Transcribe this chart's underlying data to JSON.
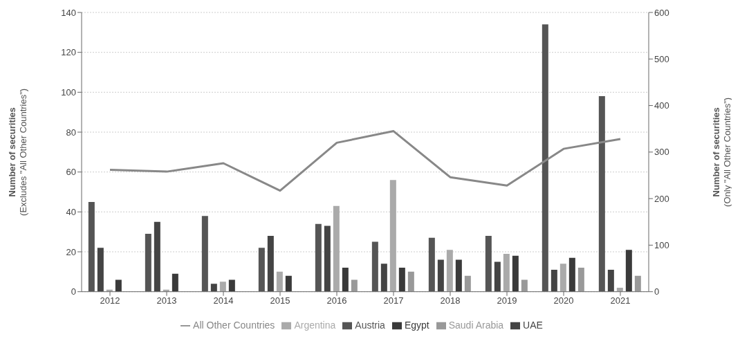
{
  "chart_data": {
    "type": "bar",
    "categories": [
      "2012",
      "2013",
      "2014",
      "2015",
      "2016",
      "2017",
      "2018",
      "2019",
      "2020",
      "2021"
    ],
    "series": [
      {
        "name": "Austria",
        "color": "#555555",
        "values": [
          45,
          29,
          38,
          22,
          34,
          25,
          27,
          28,
          134,
          98
        ]
      },
      {
        "name": "UAE",
        "color": "#444444",
        "values": [
          22,
          35,
          4,
          28,
          33,
          14,
          16,
          15,
          11,
          11
        ]
      },
      {
        "name": "Argentina",
        "color": "#aaaaaa",
        "values": [
          1,
          1,
          5,
          10,
          43,
          56,
          21,
          19,
          14,
          2
        ]
      },
      {
        "name": "Egypt",
        "color": "#3a3a3a",
        "values": [
          6,
          9,
          6,
          8,
          12,
          12,
          16,
          18,
          17,
          21
        ]
      },
      {
        "name": "Saudi Arabia",
        "color": "#999999",
        "values": [
          0,
          0,
          0,
          0,
          6,
          10,
          8,
          6,
          12,
          8
        ]
      },
      {
        "name": "All Other Countries",
        "type": "line",
        "axis": "y2",
        "color": "#888888",
        "values": [
          262,
          258,
          276,
          217,
          320,
          345,
          246,
          228,
          307,
          328
        ]
      }
    ],
    "ylabel": "Number of securities\n(Excludes \"All Other Countries\")",
    "y2label": "Number of securities\n(Only \"All Other Countries\")",
    "ylim": [
      0,
      140
    ],
    "yticks": [
      0,
      20,
      40,
      60,
      80,
      100,
      120,
      140
    ],
    "y2lim": [
      0,
      600
    ],
    "y2ticks": [
      0,
      100,
      200,
      300,
      400,
      500,
      600
    ],
    "grid": "y",
    "legend": "bottom",
    "marker": "none",
    "line_style": "solid"
  }
}
